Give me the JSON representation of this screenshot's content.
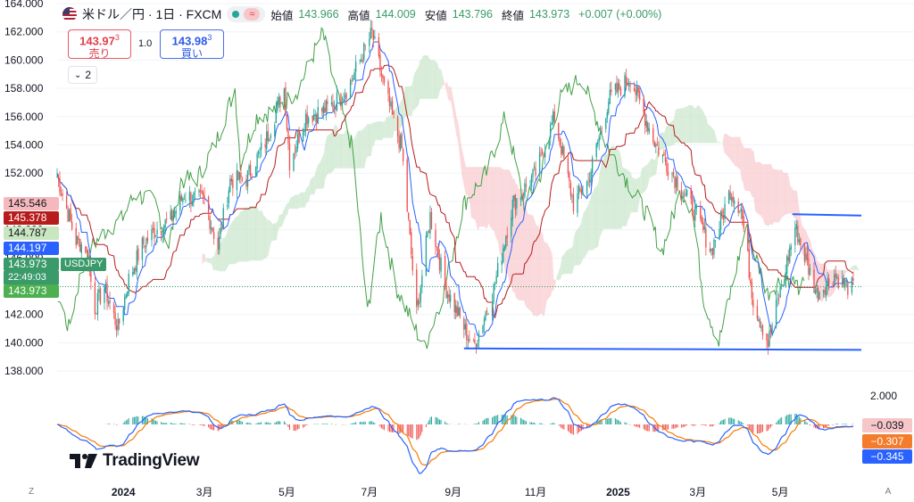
{
  "header": {
    "symbol_title": "米ドル／円 · 1日 · FXCM",
    "flag_icon": "us-flag-icon",
    "status_icons": [
      "market-open-dot-icon",
      "approx-icon"
    ],
    "ohlc": [
      {
        "label": "始値",
        "value": "143.966"
      },
      {
        "label": "高値",
        "value": "144.009"
      },
      {
        "label": "安値",
        "value": "143.796"
      },
      {
        "label": "終値",
        "value": "143.973"
      }
    ],
    "change": "+0.007 (+0.00%)"
  },
  "trade": {
    "sell_price": "143.97",
    "sell_sup": "3",
    "sell_label": "売り",
    "spread": "1.0",
    "buy_price": "143.98",
    "buy_sup": "3",
    "buy_label": "買い"
  },
  "indicators_toggle": "2",
  "left_tags": [
    {
      "value": "145.546",
      "color": "#f4b8bd",
      "text_color": "#131722"
    },
    {
      "value": "145.378",
      "color": "#b71c1c",
      "text_color": "#ffffff"
    },
    {
      "value": "144.787",
      "color": "#c8e6c0",
      "text_color": "#131722"
    },
    {
      "value": "144.197",
      "color": "#2962ff",
      "text_color": "#ffffff"
    },
    {
      "value": "143.973",
      "color": "#3a9a6a",
      "text_color": "#ffffff"
    },
    {
      "value": "143.973",
      "color": "#4caf50",
      "text_color": "#ffffff"
    }
  ],
  "symbol_tag": "USDJPY",
  "countdown": "22:49:03",
  "oscillator": {
    "scale_label": "2.000",
    "tags": [
      {
        "value": "−0.039",
        "color": "#f7c6c9",
        "text_color": "#131722"
      },
      {
        "value": "−0.307",
        "color": "#f57c2c",
        "text_color": "#ffffff"
      },
      {
        "value": "−0.345",
        "color": "#2962ff",
        "text_color": "#ffffff"
      }
    ]
  },
  "logo_text": "TradingView",
  "corner_buttons": [
    "Z",
    "A"
  ],
  "colors": {
    "up": "#26a69a",
    "down": "#ef5350",
    "conversion_line": "#2962ff",
    "base_line": "#b71c1c",
    "lagging_span": "#43a047",
    "cloud_bull": "#c8e6c9",
    "cloud_bear": "#f8c8cc",
    "macd": "#2962ff",
    "signal": "#f57c00",
    "support_line": "#2962ff"
  },
  "chart_data": {
    "type": "candlestick",
    "title": "米ドル／円 · 1日 · FXCM",
    "y_axis": {
      "ticks": [
        "164.000",
        "162.000",
        "160.000",
        "158.000",
        "156.000",
        "154.000",
        "152.000",
        "150.000",
        "148.000",
        "146.000",
        "144.000",
        "142.000",
        "140.000",
        "138.000"
      ],
      "range": [
        137.0,
        164.0
      ]
    },
    "x_axis": {
      "ticks": [
        "2024",
        "3月",
        "5月",
        "7月",
        "9月",
        "11月",
        "2025",
        "3月",
        "5月"
      ],
      "range": [
        "2023-11-13",
        "2025-06-30"
      ]
    },
    "price_path": [
      [
        "2023-11-13",
        151.8
      ],
      [
        "2023-11-20",
        149.5
      ],
      [
        "2023-11-27",
        147.2
      ],
      [
        "2023-12-04",
        146.8
      ],
      [
        "2023-12-11",
        142.5
      ],
      [
        "2023-12-18",
        143.9
      ],
      [
        "2023-12-28",
        141.0
      ],
      [
        "2024-01-05",
        144.5
      ],
      [
        "2024-01-15",
        146.9
      ],
      [
        "2024-01-25",
        148.0
      ],
      [
        "2024-02-05",
        148.7
      ],
      [
        "2024-02-15",
        150.5
      ],
      [
        "2024-03-01",
        150.0
      ],
      [
        "2024-03-11",
        146.8
      ],
      [
        "2024-03-20",
        151.5
      ],
      [
        "2024-04-01",
        151.6
      ],
      [
        "2024-04-15",
        154.2
      ],
      [
        "2024-04-29",
        158.0
      ],
      [
        "2024-05-03",
        152.8
      ],
      [
        "2024-05-15",
        156.0
      ],
      [
        "2024-06-01",
        156.6
      ],
      [
        "2024-06-15",
        158.0
      ],
      [
        "2024-07-01",
        161.5
      ],
      [
        "2024-07-03",
        161.9
      ],
      [
        "2024-07-12",
        158.0
      ],
      [
        "2024-07-25",
        153.7
      ],
      [
        "2024-08-05",
        142.0
      ],
      [
        "2024-08-15",
        149.0
      ],
      [
        "2024-08-26",
        144.0
      ],
      [
        "2024-09-16",
        139.6
      ],
      [
        "2024-10-01",
        143.8
      ],
      [
        "2024-10-15",
        149.8
      ],
      [
        "2024-11-01",
        152.0
      ],
      [
        "2024-11-15",
        156.0
      ],
      [
        "2024-11-29",
        149.8
      ],
      [
        "2024-12-10",
        151.5
      ],
      [
        "2024-12-25",
        157.2
      ],
      [
        "2025-01-10",
        158.8
      ],
      [
        "2025-01-28",
        154.2
      ],
      [
        "2025-02-10",
        152.0
      ],
      [
        "2025-02-28",
        149.0
      ],
      [
        "2025-03-11",
        146.5
      ],
      [
        "2025-03-25",
        150.8
      ],
      [
        "2025-04-02",
        149.5
      ],
      [
        "2025-04-11",
        143.0
      ],
      [
        "2025-04-22",
        140.0
      ],
      [
        "2025-05-12",
        148.2
      ],
      [
        "2025-05-28",
        143.5
      ],
      [
        "2025-06-10",
        144.8
      ],
      [
        "2025-06-20",
        143.97
      ]
    ],
    "support_lines": [
      {
        "from": [
          "2024-09-09",
          139.6
        ],
        "to": [
          "2025-06-30",
          139.5
        ]
      },
      {
        "from": [
          "2025-05-10",
          149.1
        ],
        "to": [
          "2025-06-30",
          149.0
        ]
      }
    ],
    "current_price": 143.973,
    "oscillator": {
      "type": "macd",
      "axis_label": "2.000",
      "latest": {
        "histogram": -0.039,
        "signal": -0.307,
        "macd": -0.345
      }
    }
  }
}
